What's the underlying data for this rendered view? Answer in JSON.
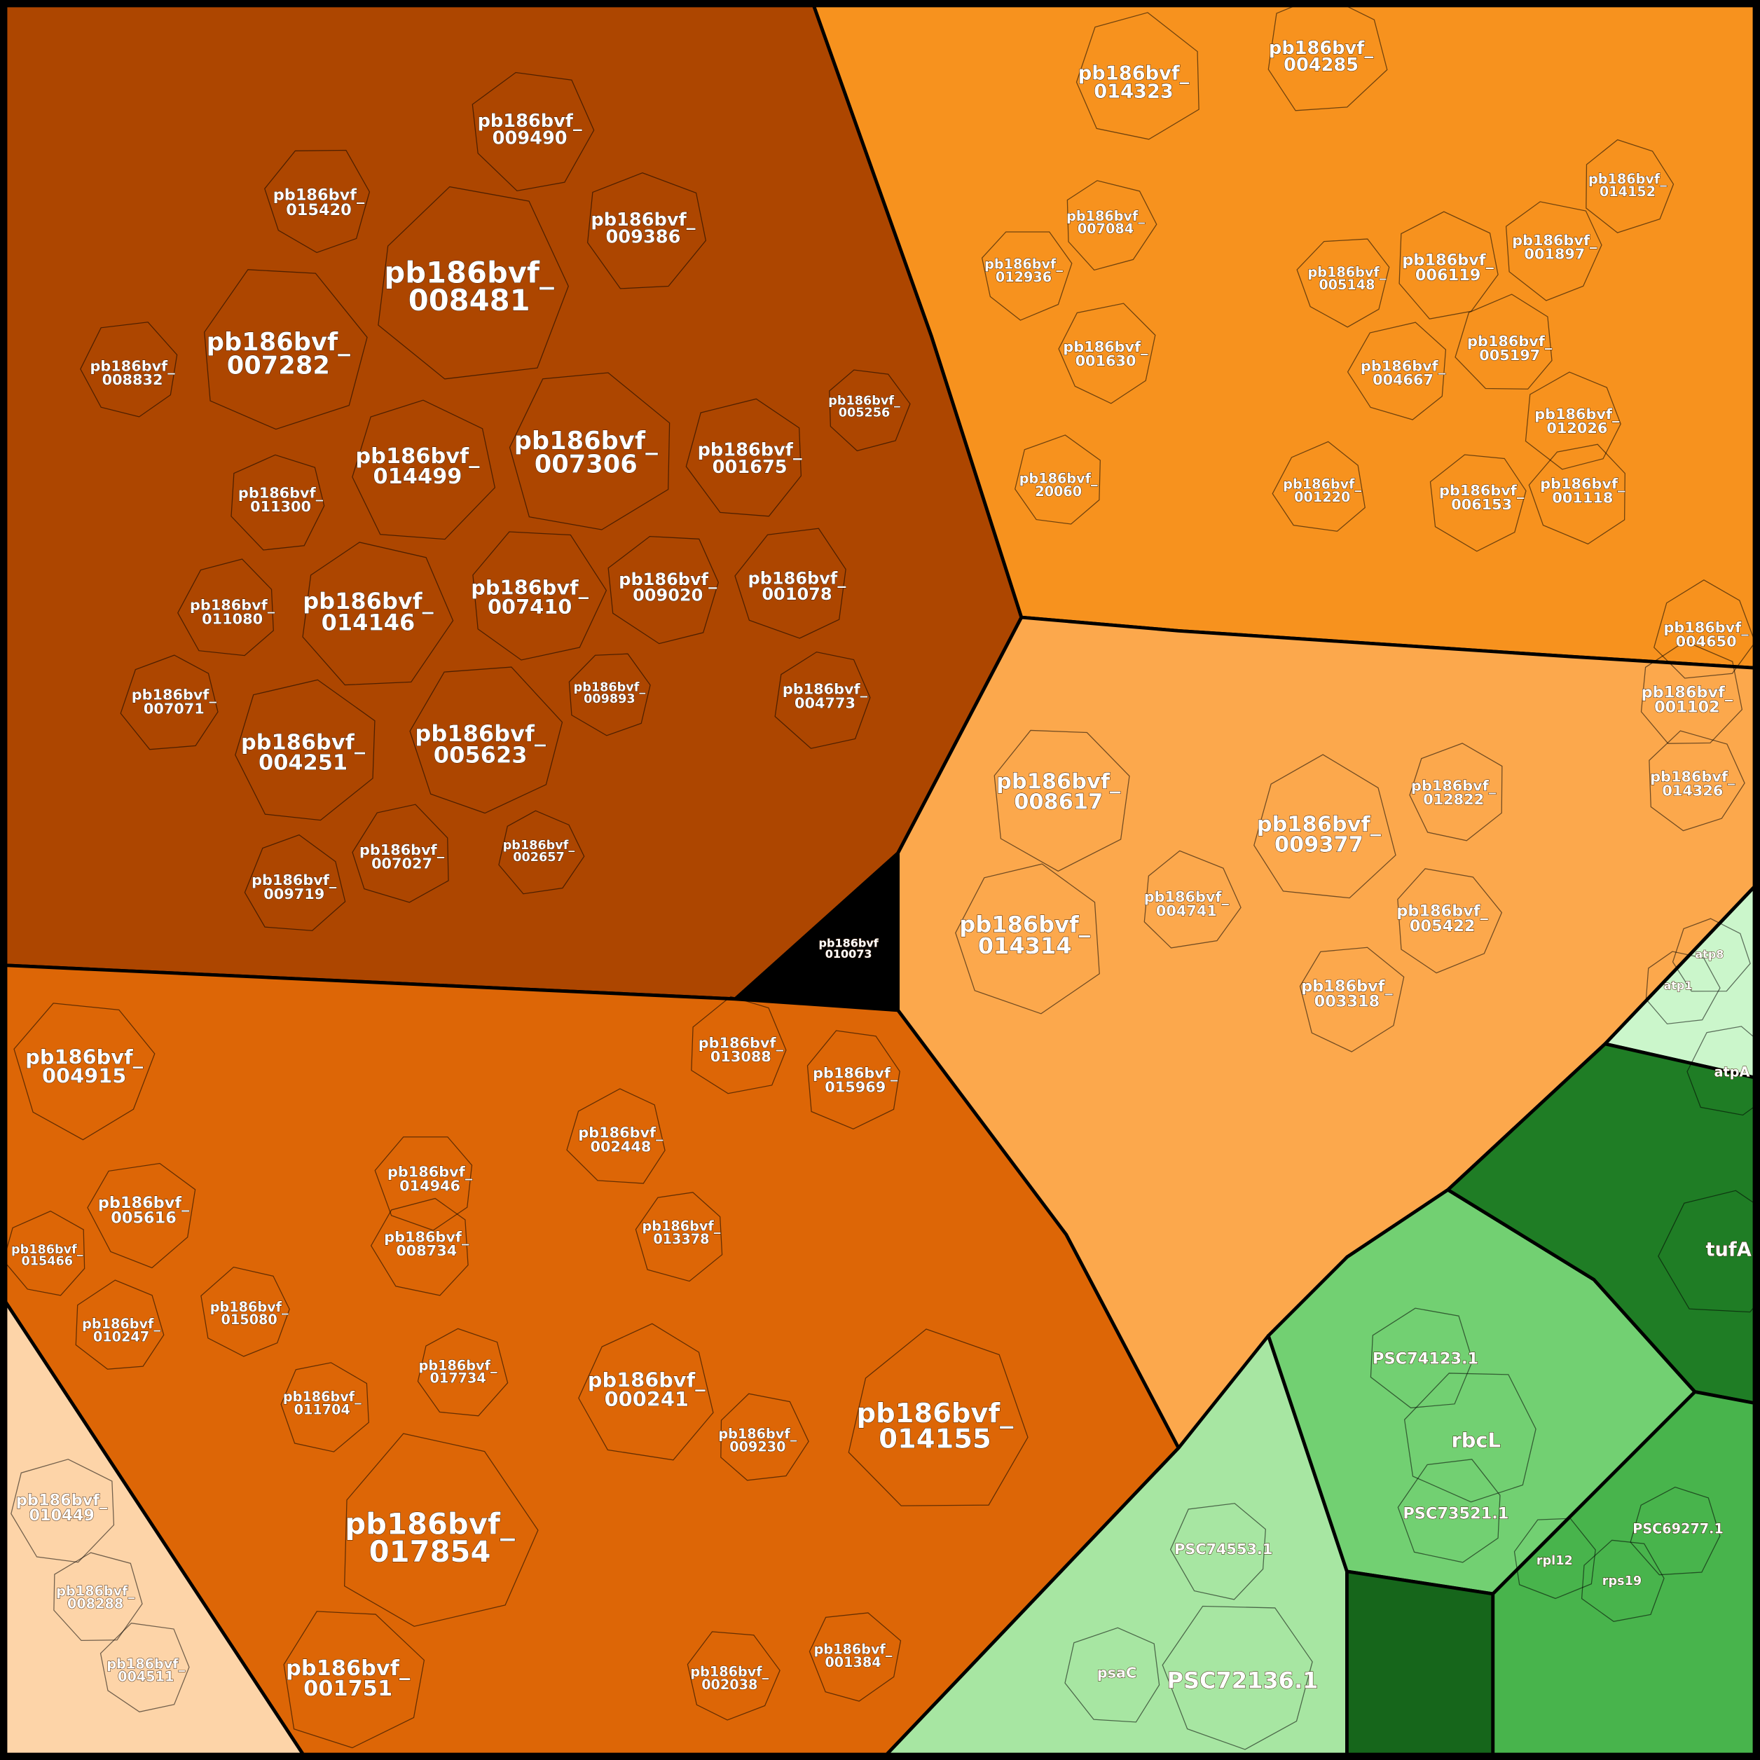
{
  "nodes": [
    {
      "lines": [
        "pb186bvf_",
        "008481"
      ]
    },
    {
      "lines": [
        "pb186bvf_",
        "007282"
      ]
    },
    {
      "lines": [
        "pb186bvf_",
        "007306"
      ]
    },
    {
      "lines": [
        "pb186bvf_",
        "014499"
      ]
    },
    {
      "lines": [
        "pb186bvf_",
        "014146"
      ]
    },
    {
      "lines": [
        "pb186bvf_",
        "007410"
      ]
    },
    {
      "lines": [
        "pb186bvf_",
        "005623"
      ]
    },
    {
      "lines": [
        "pb186bvf_",
        "004251"
      ]
    },
    {
      "lines": [
        "pb186bvf_",
        "009386"
      ]
    },
    {
      "lines": [
        "pb186bvf_",
        "009490"
      ]
    },
    {
      "lines": [
        "pb186bvf_",
        "015420"
      ]
    },
    {
      "lines": [
        "pb186bvf_",
        "008832"
      ]
    },
    {
      "lines": [
        "pb186bvf_",
        "001675"
      ]
    },
    {
      "lines": [
        "pb186bvf_",
        "011300"
      ]
    },
    {
      "lines": [
        "pb186bvf_",
        "009020"
      ]
    },
    {
      "lines": [
        "pb186bvf_",
        "001078"
      ]
    },
    {
      "lines": [
        "pb186bvf_",
        "011080"
      ]
    },
    {
      "lines": [
        "pb186bvf_",
        "007071"
      ]
    },
    {
      "lines": [
        "pb186bvf_",
        "004773"
      ]
    },
    {
      "lines": [
        "pb186bvf_",
        "009893"
      ]
    },
    {
      "lines": [
        "pb186bvf_",
        "007027"
      ]
    },
    {
      "lines": [
        "pb186bvf_",
        "009719"
      ]
    },
    {
      "lines": [
        "pb186bvf_",
        "002657"
      ]
    },
    {
      "lines": [
        "pb186bvf_",
        "005256"
      ]
    },
    {
      "lines": [
        "pb186bvf",
        "010073"
      ]
    },
    {
      "lines": [
        "pb186bvf_",
        "014323"
      ]
    },
    {
      "lines": [
        "pb186bvf_",
        "004285"
      ]
    },
    {
      "lines": [
        "pb186bvf_",
        "007084"
      ]
    },
    {
      "lines": [
        "pb186bvf_",
        "012936"
      ]
    },
    {
      "lines": [
        "pb186bvf_",
        "001630"
      ]
    },
    {
      "lines": [
        "pb186bvf_",
        "20060"
      ]
    },
    {
      "lines": [
        "pb186bvf_",
        "006119"
      ]
    },
    {
      "lines": [
        "pb186bvf_",
        "001897"
      ]
    },
    {
      "lines": [
        "pb186bvf_",
        "005148"
      ]
    },
    {
      "lines": [
        "pb186bvf_",
        "004667"
      ]
    },
    {
      "lines": [
        "pb186bvf_",
        "005197"
      ]
    },
    {
      "lines": [
        "pb186bvf_",
        "012026"
      ]
    },
    {
      "lines": [
        "pb186bvf_",
        "006153"
      ]
    },
    {
      "lines": [
        "pb186bvf_",
        "001118"
      ]
    },
    {
      "lines": [
        "pb186bvf_",
        "001220"
      ]
    },
    {
      "lines": [
        "pb186bvf_",
        "004650"
      ]
    },
    {
      "lines": [
        "pb186bvf_",
        "014152"
      ]
    },
    {
      "lines": [
        "pb186bvf_",
        "008617"
      ]
    },
    {
      "lines": [
        "pb186bvf_",
        "014314"
      ]
    },
    {
      "lines": [
        "pb186bvf_",
        "009377"
      ]
    },
    {
      "lines": [
        "pb186bvf_",
        "004741"
      ]
    },
    {
      "lines": [
        "pb186bvf_",
        "005422"
      ]
    },
    {
      "lines": [
        "pb186bvf_",
        "003318"
      ]
    },
    {
      "lines": [
        "pb186bvf_",
        "012822"
      ]
    },
    {
      "lines": [
        "pb186bvf_",
        "001102"
      ]
    },
    {
      "lines": [
        "pb186bvf_",
        "014326"
      ]
    },
    {
      "lines": [
        "pb186bvf_",
        "004915"
      ]
    },
    {
      "lines": [
        "pb186bvf_",
        "005616"
      ]
    },
    {
      "lines": [
        "pb186bvf_",
        "015466"
      ]
    },
    {
      "lines": [
        "pb186bvf_",
        "010247"
      ]
    },
    {
      "lines": [
        "pb186bvf_",
        "015080"
      ]
    },
    {
      "lines": [
        "pb186bvf_",
        "014946"
      ]
    },
    {
      "lines": [
        "pb186bvf_",
        "008734"
      ]
    },
    {
      "lines": [
        "pb186bvf_",
        "002448"
      ]
    },
    {
      "lines": [
        "pb186bvf_",
        "013088"
      ]
    },
    {
      "lines": [
        "pb186bvf_",
        "015969"
      ]
    },
    {
      "lines": [
        "pb186bvf_",
        "013378"
      ]
    },
    {
      "lines": [
        "pb186bvf_",
        "000241"
      ]
    },
    {
      "lines": [
        "pb186bvf_",
        "014155"
      ]
    },
    {
      "lines": [
        "pb186bvf_",
        "017854"
      ]
    },
    {
      "lines": [
        "pb186bvf_",
        "001751"
      ]
    },
    {
      "lines": [
        "pb186bvf_",
        "011704"
      ]
    },
    {
      "lines": [
        "pb186bvf_",
        "017734"
      ]
    },
    {
      "lines": [
        "pb186bvf_",
        "009230"
      ]
    },
    {
      "lines": [
        "pb186bvf_",
        "002038"
      ]
    },
    {
      "lines": [
        "pb186bvf_",
        "001384"
      ]
    },
    {
      "lines": [
        "pb186bvf_",
        "010449"
      ]
    },
    {
      "lines": [
        "pb186bvf_",
        "008288"
      ]
    },
    {
      "lines": [
        "pb186bvf_",
        "004511"
      ]
    },
    {
      "lines": [
        "PSC72136.1"
      ]
    },
    {
      "lines": [
        "PSC74553.1"
      ]
    },
    {
      "lines": [
        "psaC"
      ]
    },
    {
      "lines": [
        "PSC74123.1"
      ]
    },
    {
      "lines": [
        "rbcL"
      ]
    },
    {
      "lines": [
        "PSC73521.1"
      ]
    },
    {
      "lines": [
        "tufA"
      ]
    },
    {
      "lines": [
        "PSC69277.1"
      ]
    },
    {
      "lines": [
        "rps19"
      ]
    },
    {
      "lines": [
        "rpl12"
      ]
    },
    {
      "lines": [
        "atpA"
      ]
    },
    {
      "lines": [
        "atp8"
      ]
    },
    {
      "lines": [
        "atp1"
      ]
    }
  ]
}
